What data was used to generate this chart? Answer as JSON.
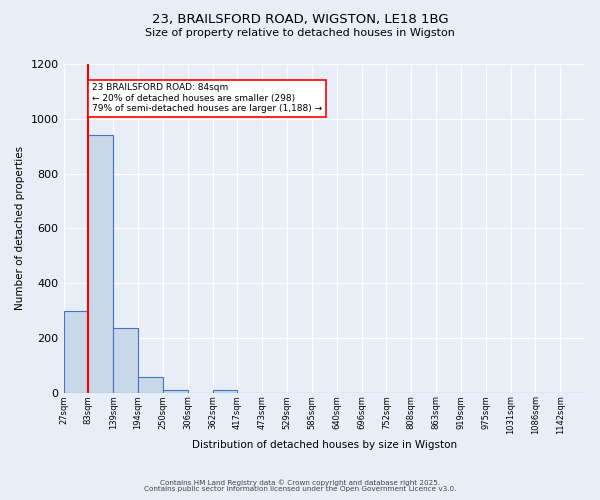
{
  "title_line1": "23, BRAILSFORD ROAD, WIGSTON, LE18 1BG",
  "title_line2": "Size of property relative to detached houses in Wigston",
  "xlabel": "Distribution of detached houses by size in Wigston",
  "ylabel": "Number of detached properties",
  "footer_line1": "Contains HM Land Registry data © Crown copyright and database right 2025.",
  "footer_line2": "Contains public sector information licensed under the Open Government Licence v3.0.",
  "bin_labels": [
    "27sqm",
    "83sqm",
    "139sqm",
    "194sqm",
    "250sqm",
    "306sqm",
    "362sqm",
    "417sqm",
    "473sqm",
    "529sqm",
    "585sqm",
    "640sqm",
    "696sqm",
    "752sqm",
    "808sqm",
    "863sqm",
    "919sqm",
    "975sqm",
    "1031sqm",
    "1086sqm",
    "1142sqm"
  ],
  "bin_values": [
    298,
    940,
    235,
    57,
    8,
    0,
    9,
    0,
    0,
    0,
    0,
    0,
    0,
    0,
    0,
    0,
    0,
    0,
    0,
    0,
    0
  ],
  "bar_color": "#c8d8e8",
  "bar_edge_color": "#4472c4",
  "bg_color": "#e8eef8",
  "grid_color": "#ffffff",
  "ylim": [
    0,
    1200
  ],
  "yticks": [
    0,
    200,
    400,
    600,
    800,
    1000,
    1200
  ],
  "annotation_text": "23 BRAILSFORD ROAD: 84sqm\n← 20% of detached houses are smaller (298)\n79% of semi-detached houses are larger (1,188) →",
  "annotation_box_color": "white",
  "annotation_box_edge_color": "red",
  "vline_color": "red",
  "vline_x_index": 1
}
